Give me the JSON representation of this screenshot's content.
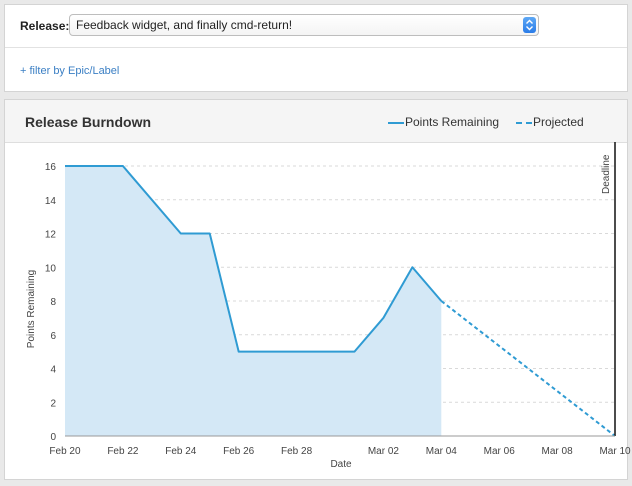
{
  "release": {
    "label": "Release:",
    "selected": "Feedback widget, and finally cmd-return!"
  },
  "filter": {
    "link_text": "+ filter by Epic/Label"
  },
  "burndown": {
    "title": "Release Burndown",
    "legend": {
      "remaining": "Points Remaining",
      "projected": "Projected"
    }
  },
  "colors": {
    "line": "#2f9bd3",
    "fill": "#d4e8f6",
    "link": "#3b7fc4"
  },
  "chart_data": {
    "type": "area",
    "xlabel": "Date",
    "ylabel": "Points Remaining",
    "ylim": [
      0,
      16
    ],
    "yticks": [
      0,
      2,
      4,
      6,
      8,
      10,
      12,
      14,
      16
    ],
    "xticks": [
      "Feb 20",
      "Feb 22",
      "Feb 24",
      "Feb 26",
      "Feb 28",
      "Mar 02",
      "Mar 04",
      "Mar 06",
      "Mar 08",
      "Mar 10"
    ],
    "grid": "horizontal dashed",
    "series": [
      {
        "name": "Points Remaining",
        "style": "solid",
        "points": [
          [
            "Feb 20",
            16
          ],
          [
            "Feb 22",
            16
          ],
          [
            "Feb 24",
            12
          ],
          [
            "Feb 25",
            12
          ],
          [
            "Feb 26",
            5
          ],
          [
            "Feb 27",
            5
          ],
          [
            "Feb 28",
            5
          ],
          [
            "Mar 01",
            5
          ],
          [
            "Mar 02",
            7
          ],
          [
            "Mar 03",
            10
          ],
          [
            "Mar 04",
            8
          ]
        ]
      },
      {
        "name": "Projected",
        "style": "dashed",
        "points": [
          [
            "Mar 04",
            8
          ],
          [
            "Mar 10",
            0
          ]
        ]
      }
    ],
    "markers": [
      {
        "label": "Deadline",
        "x": "Mar 10"
      }
    ]
  }
}
